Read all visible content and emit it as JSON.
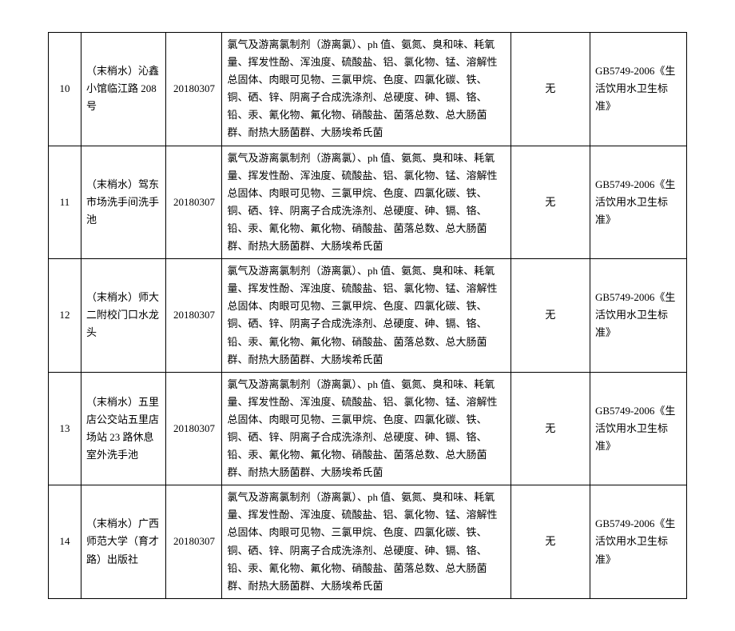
{
  "table": {
    "rows": [
      {
        "idx": "10",
        "location": "（末梢水）沁鑫小馆临江路 208 号",
        "date": "20180307",
        "items": "氯气及游离氯制剂（游离氯）、ph 值、氨氮、臭和味、耗氧量、挥发性酚、浑浊度、硫酸盐、铝、氯化物、锰、溶解性总固体、肉眼可见物、三氯甲烷、色度、四氯化碳、铁、铜、硒、锌、阴离子合成洗涤剂、总硬度、砷、镉、铬、铅、汞、氰化物、氟化物、硝酸盐、菌落总数、总大肠菌群、耐热大肠菌群、大肠埃希氏菌",
        "result": "无",
        "standard": "GB5749-2006《生活饮用水卫生标准》"
      },
      {
        "idx": "11",
        "location": "（末梢水）驾东市场洗手间洗手池",
        "date": "20180307",
        "items": "氯气及游离氯制剂（游离氯）、ph 值、氨氮、臭和味、耗氧量、挥发性酚、浑浊度、硫酸盐、铝、氯化物、锰、溶解性总固体、肉眼可见物、三氯甲烷、色度、四氯化碳、铁、铜、硒、锌、阴离子合成洗涤剂、总硬度、砷、镉、铬、铅、汞、氰化物、氟化物、硝酸盐、菌落总数、总大肠菌群、耐热大肠菌群、大肠埃希氏菌",
        "result": "无",
        "standard": "GB5749-2006《生活饮用水卫生标准》"
      },
      {
        "idx": "12",
        "location": "（末梢水）师大二附校门口水龙头",
        "date": "20180307",
        "items": "氯气及游离氯制剂（游离氯）、ph 值、氨氮、臭和味、耗氧量、挥发性酚、浑浊度、硫酸盐、铝、氯化物、锰、溶解性总固体、肉眼可见物、三氯甲烷、色度、四氯化碳、铁、铜、硒、锌、阴离子合成洗涤剂、总硬度、砷、镉、铬、铅、汞、氰化物、氟化物、硝酸盐、菌落总数、总大肠菌群、耐热大肠菌群、大肠埃希氏菌",
        "result": "无",
        "standard": "GB5749-2006《生活饮用水卫生标准》"
      },
      {
        "idx": "13",
        "location": "（末梢水）五里店公交站五里店场站 23 路休息室外洗手池",
        "date": "20180307",
        "items": "氯气及游离氯制剂（游离氯）、ph 值、氨氮、臭和味、耗氧量、挥发性酚、浑浊度、硫酸盐、铝、氯化物、锰、溶解性总固体、肉眼可见物、三氯甲烷、色度、四氯化碳、铁、铜、硒、锌、阴离子合成洗涤剂、总硬度、砷、镉、铬、铅、汞、氰化物、氟化物、硝酸盐、菌落总数、总大肠菌群、耐热大肠菌群、大肠埃希氏菌",
        "result": "无",
        "standard": "GB5749-2006《生活饮用水卫生标准》"
      },
      {
        "idx": "14",
        "location": "（末梢水）广西师范大学（育才路）出版社",
        "date": "20180307",
        "items": "氯气及游离氯制剂（游离氯）、ph 值、氨氮、臭和味、耗氧量、挥发性酚、浑浊度、硫酸盐、铝、氯化物、锰、溶解性总固体、肉眼可见物、三氯甲烷、色度、四氯化碳、铁、铜、硒、锌、阴离子合成洗涤剂、总硬度、砷、镉、铬、铅、汞、氰化物、氟化物、硝酸盐、菌落总数、总大肠菌群、耐热大肠菌群、大肠埃希氏菌",
        "result": "无",
        "standard": "GB5749-2006《生活饮用水卫生标准》"
      }
    ]
  }
}
